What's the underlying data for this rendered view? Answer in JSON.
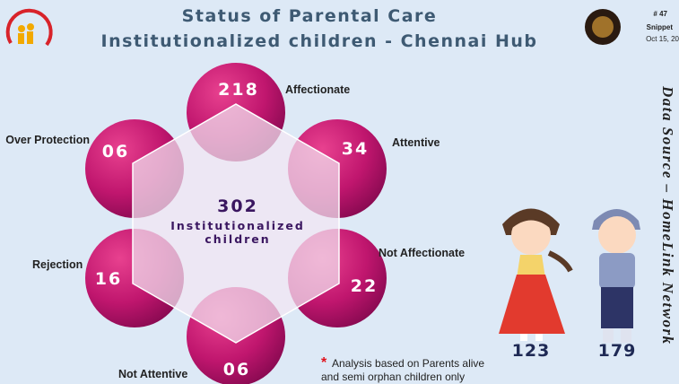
{
  "header": {
    "title": "Status of Parental Care",
    "subtitle": "Institutionalized children - Chennai Hub"
  },
  "badge": {
    "number": "# 47",
    "label": "Snippet",
    "date": "Oct 15, 20"
  },
  "center": {
    "value": "302",
    "label_line1": "Institutionalized",
    "label_line2": "children"
  },
  "segments": [
    {
      "value": "218",
      "label": "Affectionate"
    },
    {
      "value": "34",
      "label": "Attentive"
    },
    {
      "value": "22",
      "label": "Not Affectionate"
    },
    {
      "value": "06",
      "label": "Not Attentive"
    },
    {
      "value": "16",
      "label": "Rejection"
    },
    {
      "value": "06",
      "label": "Over Protection"
    }
  ],
  "children": {
    "girls": "123",
    "boys": "179"
  },
  "note": {
    "marker": "*",
    "line1": "Analysis based on Parents alive",
    "line2": "and semi orphan children only"
  },
  "source": "Data Source – HomeLink Network"
}
